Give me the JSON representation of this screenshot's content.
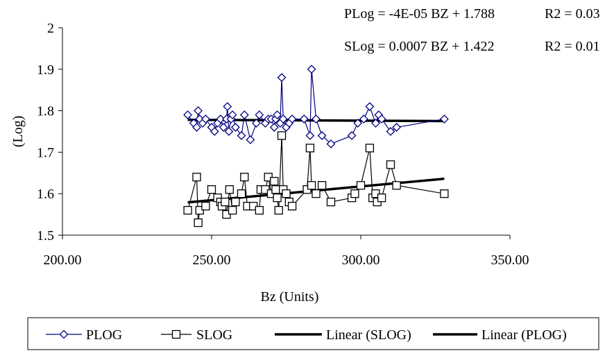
{
  "chart_data": {
    "type": "line",
    "title": "",
    "xlabel": "Bz (Units)",
    "ylabel": "(Log)",
    "xlim": [
      200,
      350
    ],
    "ylim": [
      1.5,
      2.0
    ],
    "x_ticks": [
      200,
      250,
      300,
      350
    ],
    "x_tick_labels": [
      "200.00",
      "250.00",
      "300.00",
      "350.00"
    ],
    "y_ticks": [
      1.5,
      1.6,
      1.7,
      1.8,
      1.9,
      2.0
    ],
    "y_tick_labels": [
      "1.5",
      "1.6",
      "1.7",
      "1.8",
      "1.9",
      "2"
    ],
    "grid": false,
    "legend_position": "bottom",
    "annotations": [
      {
        "equation": "PLog = -4E-05 BZ + 1.788",
        "r2": "R2 = 0.03"
      },
      {
        "equation": "SLog = 0.0007 BZ + 1.422",
        "r2": "R2 = 0.01"
      }
    ],
    "series": [
      {
        "name": "PLOG",
        "marker": "diamond",
        "color": "#000080",
        "points": [
          [
            242,
            1.79
          ],
          [
            244,
            1.77
          ],
          [
            245,
            1.76
          ],
          [
            245.5,
            1.8
          ],
          [
            246,
            1.78
          ],
          [
            247,
            1.77
          ],
          [
            248,
            1.78
          ],
          [
            250,
            1.76
          ],
          [
            251,
            1.75
          ],
          [
            252,
            1.77
          ],
          [
            253,
            1.78
          ],
          [
            254,
            1.76
          ],
          [
            255,
            1.78
          ],
          [
            255.3,
            1.81
          ],
          [
            255.8,
            1.75
          ],
          [
            256.5,
            1.78
          ],
          [
            257,
            1.79
          ],
          [
            258,
            1.76
          ],
          [
            260,
            1.74
          ],
          [
            261,
            1.79
          ],
          [
            263,
            1.73
          ],
          [
            265,
            1.77
          ],
          [
            266,
            1.79
          ],
          [
            268,
            1.77
          ],
          [
            269,
            1.78
          ],
          [
            270,
            1.78
          ],
          [
            271,
            1.76
          ],
          [
            271.5,
            1.78
          ],
          [
            272,
            1.79
          ],
          [
            273,
            1.77
          ],
          [
            273.5,
            1.88
          ],
          [
            274,
            1.78
          ],
          [
            275,
            1.76
          ],
          [
            276,
            1.77
          ],
          [
            277,
            1.78
          ],
          [
            281,
            1.78
          ],
          [
            283,
            1.74
          ],
          [
            283.5,
            1.9
          ],
          [
            285,
            1.78
          ],
          [
            287,
            1.74
          ],
          [
            290,
            1.72
          ],
          [
            297,
            1.74
          ],
          [
            299,
            1.77
          ],
          [
            301,
            1.78
          ],
          [
            303,
            1.81
          ],
          [
            305,
            1.77
          ],
          [
            306,
            1.79
          ],
          [
            307,
            1.78
          ],
          [
            310,
            1.75
          ],
          [
            312,
            1.76
          ],
          [
            328,
            1.78
          ]
        ]
      },
      {
        "name": "SLOG",
        "marker": "square",
        "color": "#000000",
        "points": [
          [
            242,
            1.56
          ],
          [
            245,
            1.64
          ],
          [
            245.5,
            1.53
          ],
          [
            246,
            1.56
          ],
          [
            248,
            1.57
          ],
          [
            250,
            1.61
          ],
          [
            252,
            1.59
          ],
          [
            253,
            1.58
          ],
          [
            253.5,
            1.57
          ],
          [
            254.5,
            1.58
          ],
          [
            255,
            1.55
          ],
          [
            256,
            1.61
          ],
          [
            257,
            1.56
          ],
          [
            258,
            1.58
          ],
          [
            260,
            1.6
          ],
          [
            261,
            1.64
          ],
          [
            262,
            1.57
          ],
          [
            264,
            1.57
          ],
          [
            266,
            1.56
          ],
          [
            266.5,
            1.61
          ],
          [
            268,
            1.61
          ],
          [
            269,
            1.64
          ],
          [
            270,
            1.6
          ],
          [
            271,
            1.63
          ],
          [
            271.5,
            1.61
          ],
          [
            272,
            1.59
          ],
          [
            272.5,
            1.56
          ],
          [
            273.5,
            1.74
          ],
          [
            274,
            1.61
          ],
          [
            275,
            1.6
          ],
          [
            276,
            1.58
          ],
          [
            277,
            1.57
          ],
          [
            282,
            1.61
          ],
          [
            283,
            1.71
          ],
          [
            283.5,
            1.62
          ],
          [
            285,
            1.6
          ],
          [
            287,
            1.62
          ],
          [
            290,
            1.58
          ],
          [
            297,
            1.59
          ],
          [
            298,
            1.6
          ],
          [
            300,
            1.62
          ],
          [
            303,
            1.71
          ],
          [
            304,
            1.59
          ],
          [
            305,
            1.6
          ],
          [
            305.5,
            1.58
          ],
          [
            307,
            1.59
          ],
          [
            310,
            1.67
          ],
          [
            312,
            1.62
          ],
          [
            328,
            1.6
          ]
        ]
      },
      {
        "name": "Linear (SLOG)",
        "style": "trendline",
        "color": "#000000",
        "points": [
          [
            242,
            1.579
          ],
          [
            328,
            1.636
          ]
        ]
      },
      {
        "name": "Linear (PLOG)",
        "style": "trendline",
        "color": "#000000",
        "points": [
          [
            242,
            1.778
          ],
          [
            328,
            1.775
          ]
        ]
      }
    ]
  }
}
